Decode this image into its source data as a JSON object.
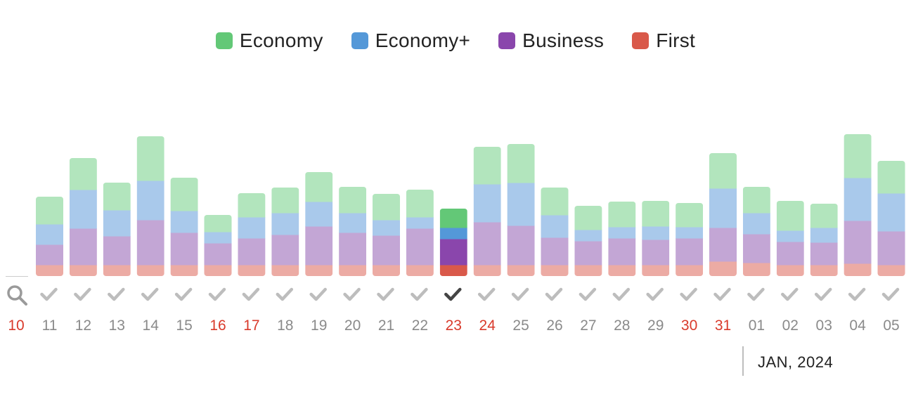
{
  "legend": [
    {
      "label": "Economy",
      "color": "#63c877"
    },
    {
      "label": "Economy+",
      "color": "#5498d8"
    },
    {
      "label": "Business",
      "color": "#8a46ac"
    },
    {
      "label": "First",
      "color": "#d9594a"
    }
  ],
  "colors": {
    "economy": "#63c877",
    "economy_light": "#b2e5bd",
    "economy_plus": "#5498d8",
    "economy_plus_light": "#a9c9eb",
    "business": "#8a46ac",
    "business_light": "#c3a6d5",
    "first": "#d9594a",
    "first_light": "#ecaba4",
    "weekend_text": "#d93a2b",
    "tick_text": "#8a8a8a",
    "check": "#bdbdbd",
    "check_selected": "#444444"
  },
  "search_icon": "search-icon",
  "month_label": "JAN, 2024",
  "selected_day": "23",
  "chart_data": {
    "type": "bar",
    "stacked": true,
    "categories": [
      "11",
      "12",
      "13",
      "14",
      "15",
      "16",
      "17",
      "18",
      "19",
      "20",
      "21",
      "22",
      "23",
      "24",
      "25",
      "26",
      "27",
      "28",
      "29",
      "30",
      "31",
      "01",
      "02",
      "03",
      "04",
      "05"
    ],
    "extra_tick": "10",
    "weekend_days": [
      "10",
      "16",
      "17",
      "23",
      "24",
      "30",
      "31"
    ],
    "series": [
      {
        "name": "First",
        "values": [
          16,
          16,
          16,
          16,
          16,
          16,
          16,
          16,
          16,
          16,
          16,
          16,
          16,
          16,
          16,
          16,
          16,
          16,
          16,
          16,
          21,
          19,
          16,
          16,
          18,
          16
        ]
      },
      {
        "name": "Business",
        "values": [
          29,
          52,
          41,
          64,
          46,
          31,
          38,
          43,
          55,
          46,
          42,
          52,
          37,
          61,
          56,
          39,
          34,
          38,
          36,
          38,
          48,
          41,
          33,
          32,
          61,
          48
        ]
      },
      {
        "name": "Economy+",
        "values": [
          29,
          55,
          37,
          56,
          31,
          16,
          30,
          31,
          35,
          28,
          22,
          16,
          16,
          54,
          61,
          32,
          16,
          16,
          19,
          16,
          56,
          30,
          16,
          21,
          61,
          54
        ]
      },
      {
        "name": "Economy",
        "values": [
          39,
          45,
          39,
          63,
          47,
          24,
          34,
          36,
          42,
          37,
          37,
          39,
          27,
          53,
          55,
          39,
          34,
          36,
          36,
          34,
          50,
          37,
          42,
          34,
          62,
          46
        ]
      }
    ],
    "ylim": [
      0,
      210
    ]
  }
}
